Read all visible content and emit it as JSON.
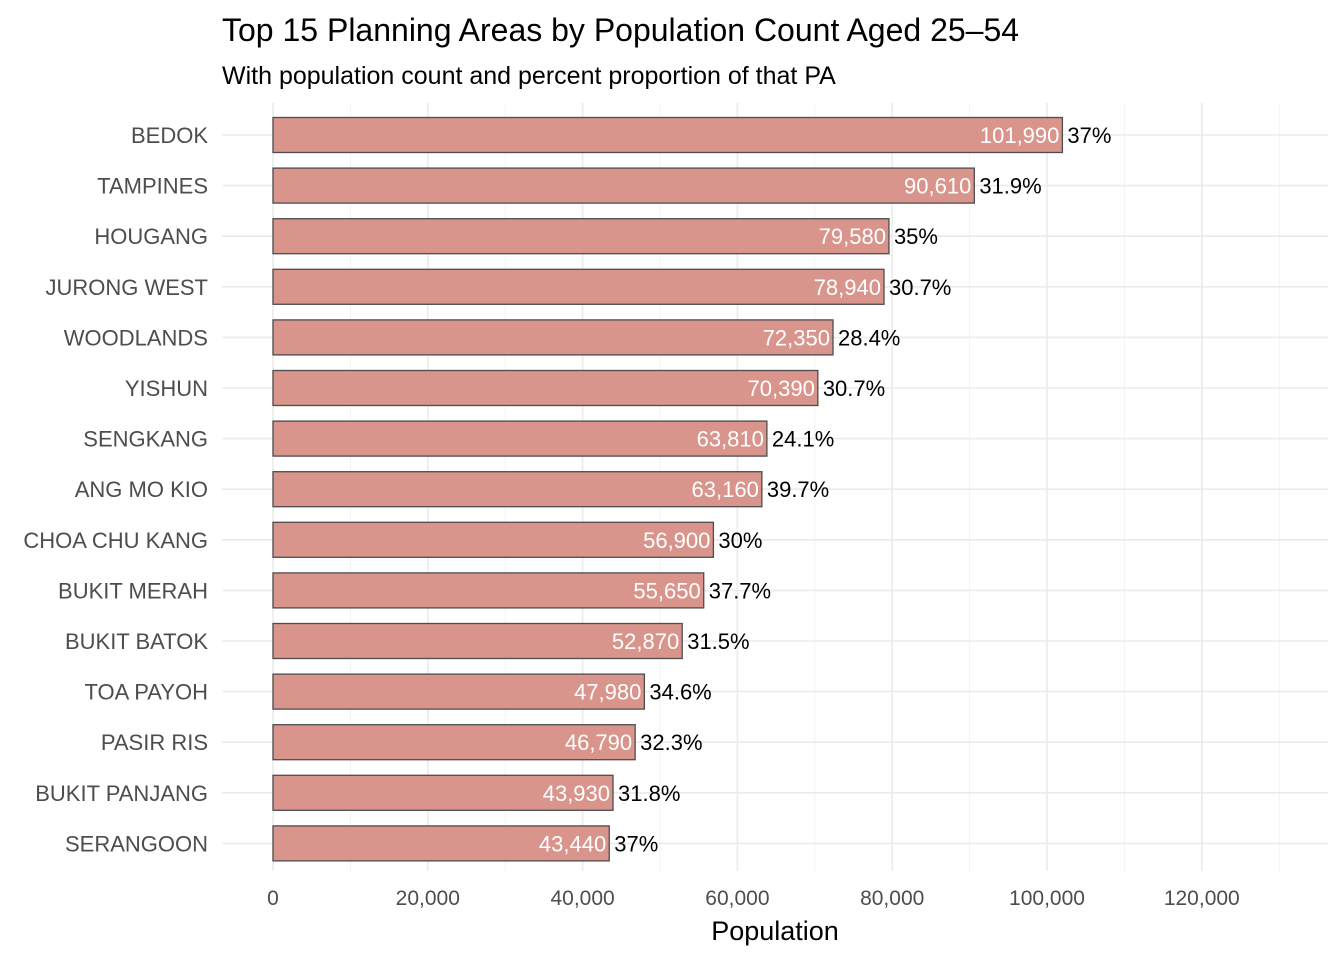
{
  "chart_data": {
    "type": "bar",
    "orientation": "horizontal",
    "title": "Top 15 Planning Areas by Population Count Aged 25–54",
    "subtitle": "With population count and percent proportion of that PA",
    "xlabel": "Population",
    "ylabel": "",
    "xlim": [
      0,
      134000
    ],
    "x_ticks": [
      0,
      20000,
      40000,
      60000,
      80000,
      100000,
      120000
    ],
    "x_tick_labels": [
      "0",
      "20,000",
      "40,000",
      "60,000",
      "80,000",
      "100,000",
      "120,000"
    ],
    "grid": true,
    "legend": "none",
    "bar_color": "#d9958c",
    "bar_outline_color": "#4d4d4d",
    "value_label_color": "#ffffff",
    "percent_label_color": "#000000",
    "categories": [
      "BEDOK",
      "TAMPINES",
      "HOUGANG",
      "JURONG WEST",
      "WOODLANDS",
      "YISHUN",
      "SENGKANG",
      "ANG MO KIO",
      "CHOA CHU KANG",
      "BUKIT MERAH",
      "BUKIT BATOK",
      "TOA PAYOH",
      "PASIR RIS",
      "BUKIT PANJANG",
      "SERANGOON"
    ],
    "values": [
      101990,
      90610,
      79580,
      78940,
      72350,
      70390,
      63810,
      63160,
      56900,
      55650,
      52870,
      47980,
      46790,
      43930,
      43440
    ],
    "value_labels": [
      "101,990",
      "90,610",
      "79,580",
      "78,940",
      "72,350",
      "70,390",
      "63,810",
      "63,160",
      "56,900",
      "55,650",
      "52,870",
      "47,980",
      "46,790",
      "43,930",
      "43,440"
    ],
    "percent_labels": [
      "37%",
      "31.9%",
      "35%",
      "30.7%",
      "28.4%",
      "30.7%",
      "24.1%",
      "39.7%",
      "30%",
      "37.7%",
      "31.5%",
      "34.6%",
      "32.3%",
      "31.8%",
      "37%"
    ]
  }
}
